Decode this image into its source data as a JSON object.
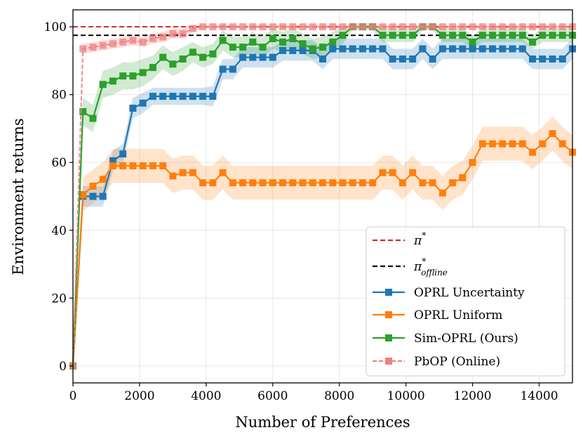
{
  "chart_data": {
    "type": "line",
    "title": "",
    "xlabel": "Number of Preferences",
    "ylabel": "Environment returns",
    "xlim": [
      0,
      15000
    ],
    "ylim": [
      -5,
      105
    ],
    "xticks": [
      0,
      2000,
      4000,
      6000,
      8000,
      10000,
      12000,
      14000
    ],
    "yticks": [
      0,
      20,
      40,
      60,
      80,
      100
    ],
    "grid": true,
    "legend_position": "lower-right",
    "reference_lines": [
      {
        "name": "π*",
        "y": 100,
        "color": "#d62728",
        "style": "dashed"
      },
      {
        "name": "π*offline",
        "y": 97.5,
        "color": "#000000",
        "style": "dashed"
      }
    ],
    "x": [
      0,
      300,
      600,
      900,
      1200,
      1500,
      1800,
      2100,
      2400,
      2700,
      3000,
      3300,
      3600,
      3900,
      4200,
      4500,
      4800,
      5100,
      5400,
      5700,
      6000,
      6300,
      6600,
      6900,
      7200,
      7500,
      7800,
      8100,
      8400,
      8700,
      9000,
      9300,
      9600,
      9900,
      10200,
      10500,
      10800,
      11100,
      11400,
      11700,
      12000,
      12300,
      12600,
      12900,
      13200,
      13500,
      13800,
      14100,
      14400,
      14700,
      15000
    ],
    "series": [
      {
        "name": "OPRL Uncertainty",
        "color": "#1f77b4",
        "marker": "square",
        "values": [
          0,
          50,
          50,
          50,
          60.5,
          62.5,
          76,
          77.5,
          79.5,
          79.5,
          79.5,
          79.5,
          79.5,
          79.5,
          79.5,
          87.5,
          87.5,
          91,
          91,
          91,
          91,
          93,
          93,
          93,
          93,
          90.5,
          93.5,
          93.5,
          93.5,
          93.5,
          93.5,
          93.5,
          90.5,
          90.5,
          90.5,
          93.5,
          90.5,
          93.5,
          93.5,
          93.5,
          93.5,
          93.5,
          93.5,
          93.5,
          93.5,
          93.5,
          90.5,
          90.5,
          90.5,
          90.5,
          93.5
        ],
        "band": [
          3,
          3,
          3,
          3,
          3,
          3,
          3,
          3,
          2.5,
          2.5,
          2.5,
          2.5,
          2.5,
          2.5,
          3,
          3,
          3,
          3,
          3,
          3,
          3,
          3,
          3,
          3,
          3,
          3,
          3,
          3,
          3,
          3,
          3,
          3,
          3,
          3,
          3,
          3,
          3,
          3,
          3,
          3,
          3,
          3,
          3,
          3,
          3,
          3,
          3,
          3,
          3,
          3,
          3
        ]
      },
      {
        "name": "OPRL Uniform",
        "color": "#ff7f0e",
        "marker": "square",
        "values": [
          0,
          50.5,
          53,
          55,
          59,
          59,
          59,
          59,
          59,
          59,
          56,
          57,
          57,
          54,
          54,
          57,
          54,
          54,
          54,
          54,
          54,
          54,
          54,
          54,
          54,
          54,
          54,
          54,
          54,
          54,
          54,
          57,
          57,
          54,
          57,
          54,
          54,
          51,
          54,
          55.5,
          60,
          65.5,
          65.5,
          65.5,
          65.5,
          65.5,
          63,
          65.5,
          68.5,
          65.5,
          63
        ],
        "band": [
          4,
          5,
          5,
          5,
          5,
          5,
          5,
          5,
          5,
          5,
          5,
          5,
          5,
          5,
          5,
          5,
          5,
          5,
          5,
          5,
          5,
          5,
          5,
          5,
          5,
          5,
          5,
          5,
          5,
          5,
          5,
          5,
          5,
          5,
          5,
          5,
          5,
          5,
          5,
          5,
          5,
          5,
          5,
          5,
          5,
          5,
          5,
          5,
          5,
          5,
          5
        ]
      },
      {
        "name": "Sim-OPRL (Ours)",
        "color": "#2ca02c",
        "marker": "square",
        "values": [
          0,
          75,
          73,
          83,
          84,
          85.5,
          85.5,
          86.5,
          88,
          91,
          89,
          90.5,
          92.5,
          91,
          92,
          96,
          94,
          94,
          95.5,
          94,
          96.5,
          95.5,
          96.5,
          95,
          93.5,
          94,
          95.5,
          97.5,
          100,
          100,
          100,
          97.5,
          97.5,
          97.5,
          97.5,
          100,
          100,
          97.5,
          97.5,
          97.5,
          95.5,
          97.5,
          97.5,
          97.5,
          97.5,
          97.5,
          95.5,
          97.5,
          97.5,
          97.5,
          97.5
        ],
        "band": [
          0,
          4,
          4,
          4,
          4,
          4,
          4,
          4,
          3.5,
          3.5,
          3.5,
          3.5,
          3,
          3,
          3,
          3,
          3,
          3,
          3,
          3,
          3,
          3,
          3,
          3,
          3,
          3,
          3,
          2.5,
          1,
          1,
          1,
          2,
          2,
          2,
          2,
          1,
          1,
          2,
          2,
          2,
          2,
          2,
          2,
          2,
          2,
          2,
          2,
          2,
          2,
          2,
          2
        ]
      },
      {
        "name": "PbOP (Online)",
        "color": "#f08080",
        "marker": "square",
        "values": [
          0,
          93.5,
          94,
          94.5,
          95,
          95.5,
          96,
          95.5,
          96.5,
          97,
          98,
          98,
          99.5,
          100,
          100,
          100,
          100,
          100,
          100,
          100,
          100,
          100,
          100,
          100,
          100,
          100,
          100,
          100,
          100,
          100,
          100,
          100,
          100,
          100,
          100,
          100,
          100,
          100,
          100,
          100,
          100,
          100,
          100,
          100,
          100,
          100,
          100,
          100,
          100,
          100,
          100
        ],
        "band": [
          0,
          1.5,
          1.5,
          1.5,
          1.5,
          1.5,
          1.5,
          1.5,
          1.5,
          1.5,
          1.5,
          1.5,
          1,
          0.5,
          0.5,
          0.5,
          0.5,
          0.5,
          0.5,
          0.5,
          0.5,
          0.5,
          0.5,
          0.5,
          0.5,
          0.5,
          0.5,
          0.5,
          0.5,
          0.5,
          0.5,
          0.5,
          0.5,
          0.5,
          0.5,
          0.5,
          0.5,
          0.5,
          0.5,
          0.5,
          0.5,
          0.5,
          0.5,
          0.5,
          0.5,
          0.5,
          0.5,
          0.5,
          0.5,
          0.5,
          0.5
        ]
      }
    ],
    "legend": [
      {
        "label": "π",
        "sup": "*",
        "sub": "",
        "color": "#d62728",
        "kind": "dashed"
      },
      {
        "label": "π",
        "sup": "*",
        "sub": "offline",
        "color": "#000000",
        "kind": "dashed"
      },
      {
        "label": "OPRL Uncertainty",
        "sup": "",
        "sub": "",
        "color": "#1f77b4",
        "kind": "marker"
      },
      {
        "label": "OPRL Uniform",
        "sup": "",
        "sub": "",
        "color": "#ff7f0e",
        "kind": "marker"
      },
      {
        "label": "Sim-OPRL (Ours)",
        "sup": "",
        "sub": "",
        "color": "#2ca02c",
        "kind": "marker"
      },
      {
        "label": "PbOP (Online)",
        "sup": "",
        "sub": "",
        "color": "#f08080",
        "kind": "marker-dashed"
      }
    ]
  }
}
